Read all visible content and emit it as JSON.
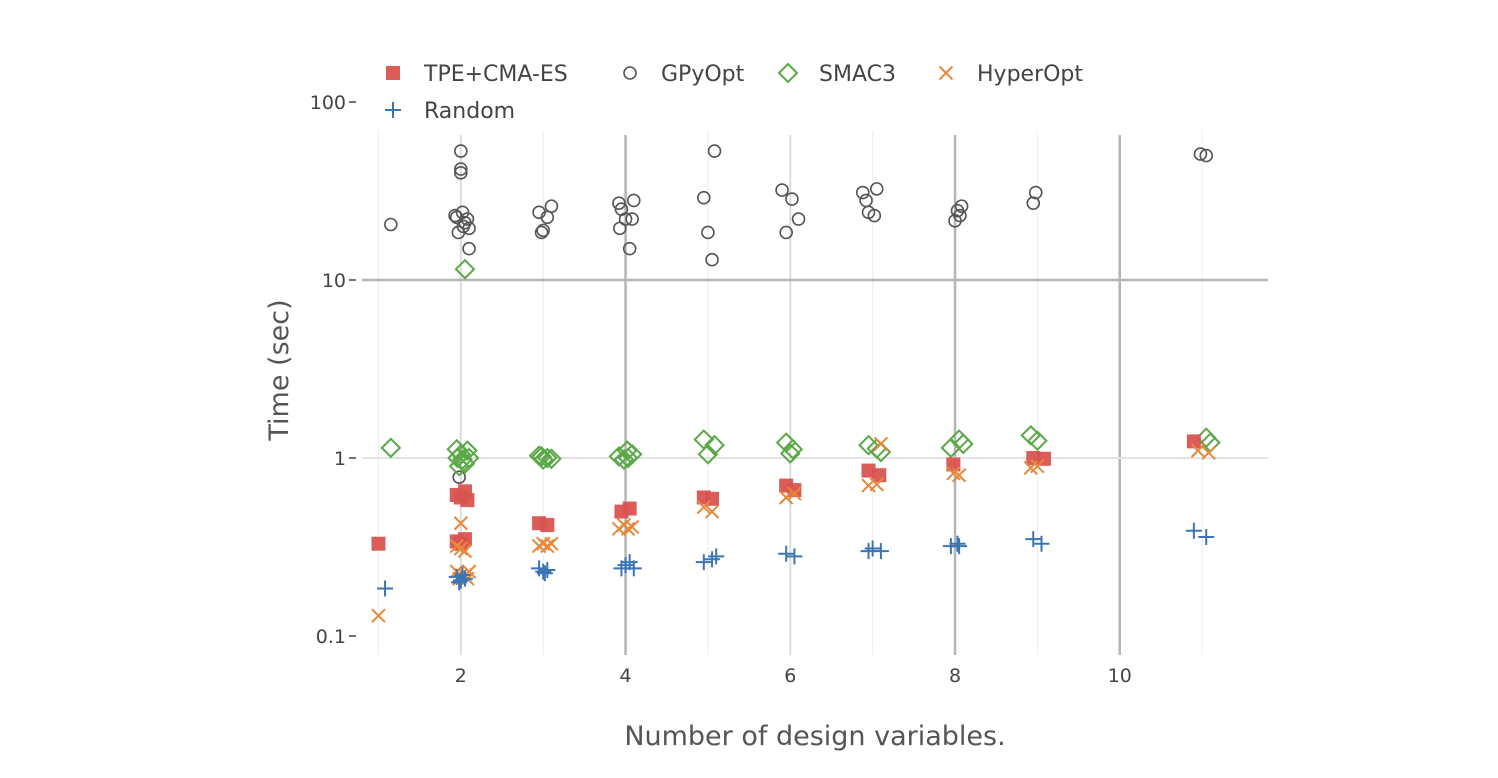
{
  "chart_data": {
    "type": "scatter",
    "title": "",
    "xlabel": "Number of design variables.",
    "ylabel": "Time (sec)",
    "x_range": [
      0.8,
      11.8
    ],
    "y_range": [
      0.09,
      100
    ],
    "y_scale": "log",
    "x_ticks": [
      2,
      4,
      6,
      8,
      10
    ],
    "y_ticks": [
      {
        "value": 0.1,
        "label": "0.1"
      },
      {
        "value": 1,
        "label": "1"
      },
      {
        "value": 10,
        "label": "10"
      },
      {
        "value": 100,
        "label": "100"
      }
    ],
    "grid": true,
    "legend": "top-left",
    "series": [
      {
        "name": "TPE+CMA-ES",
        "marker": "square",
        "color": "#d9534f",
        "points": [
          [
            1,
            0.33
          ],
          [
            1.95,
            0.62
          ],
          [
            2.0,
            0.6
          ],
          [
            2.05,
            0.65
          ],
          [
            2.08,
            0.58
          ],
          [
            1.95,
            0.34
          ],
          [
            2.0,
            0.33
          ],
          [
            2.05,
            0.35
          ],
          [
            2.95,
            0.43
          ],
          [
            3.05,
            0.42
          ],
          [
            3.95,
            0.5
          ],
          [
            4.05,
            0.52
          ],
          [
            4.95,
            0.6
          ],
          [
            5.05,
            0.59
          ],
          [
            5.95,
            0.7
          ],
          [
            6.05,
            0.66
          ],
          [
            6.95,
            0.85
          ],
          [
            7.08,
            0.8
          ],
          [
            7.98,
            0.92
          ],
          [
            8.95,
            1.0
          ],
          [
            9.08,
            0.99
          ],
          [
            10.9,
            1.24
          ]
        ]
      },
      {
        "name": "GPyOpt",
        "marker": "circle-open",
        "color": "#555555",
        "points": [
          [
            1.15,
            20.5
          ],
          [
            1.95,
            22.5
          ],
          [
            1.97,
            18.5
          ],
          [
            2.0,
            53
          ],
          [
            2.0,
            42
          ],
          [
            2.0,
            40
          ],
          [
            2.02,
            24
          ],
          [
            2.05,
            21
          ],
          [
            2.08,
            22
          ],
          [
            2.1,
            19.5
          ],
          [
            2.1,
            15
          ],
          [
            1.93,
            23
          ],
          [
            2.03,
            20
          ],
          [
            1.98,
            0.78
          ],
          [
            2.95,
            24
          ],
          [
            2.98,
            18.5
          ],
          [
            3.0,
            19
          ],
          [
            3.05,
            22.5
          ],
          [
            3.1,
            26
          ],
          [
            3.92,
            27
          ],
          [
            3.95,
            25
          ],
          [
            4.0,
            22
          ],
          [
            4.05,
            15
          ],
          [
            4.1,
            28
          ],
          [
            3.93,
            19.5
          ],
          [
            4.08,
            22
          ],
          [
            4.95,
            29
          ],
          [
            5.0,
            18.5
          ],
          [
            5.05,
            13
          ],
          [
            5.08,
            53
          ],
          [
            5.9,
            32
          ],
          [
            5.95,
            18.5
          ],
          [
            6.02,
            28.5
          ],
          [
            6.1,
            22
          ],
          [
            6.88,
            31
          ],
          [
            6.92,
            28
          ],
          [
            6.95,
            24
          ],
          [
            7.02,
            23
          ],
          [
            7.05,
            32.5
          ],
          [
            8.0,
            21.5
          ],
          [
            8.03,
            24.5
          ],
          [
            8.06,
            23
          ],
          [
            8.08,
            26
          ],
          [
            8.95,
            27
          ],
          [
            8.98,
            31
          ],
          [
            10.98,
            51
          ],
          [
            11.05,
            50
          ]
        ]
      },
      {
        "name": "SMAC3",
        "marker": "diamond-open",
        "color": "#5aa846",
        "points": [
          [
            1.15,
            1.14
          ],
          [
            1.95,
            1.12
          ],
          [
            2.0,
            1.05
          ],
          [
            2.02,
            0.98
          ],
          [
            2.05,
            0.93
          ],
          [
            1.98,
            0.9
          ],
          [
            2.08,
            1.1
          ],
          [
            2.1,
            1.0
          ],
          [
            1.96,
            1.0
          ],
          [
            2.05,
            11.5
          ],
          [
            2.95,
            1.03
          ],
          [
            3.0,
            0.98
          ],
          [
            3.05,
            1.0
          ],
          [
            3.1,
            0.99
          ],
          [
            2.98,
            1.02
          ],
          [
            3.92,
            1.02
          ],
          [
            3.98,
            0.98
          ],
          [
            4.02,
            1.1
          ],
          [
            4.08,
            1.05
          ],
          [
            4.03,
            1.0
          ],
          [
            4.95,
            1.27
          ],
          [
            5.0,
            1.05
          ],
          [
            5.08,
            1.18
          ],
          [
            5.95,
            1.22
          ],
          [
            6.0,
            1.06
          ],
          [
            6.03,
            1.12
          ],
          [
            6.95,
            1.18
          ],
          [
            7.05,
            1.13
          ],
          [
            7.1,
            1.08
          ],
          [
            7.95,
            1.14
          ],
          [
            8.05,
            1.27
          ],
          [
            8.1,
            1.2
          ],
          [
            8.92,
            1.34
          ],
          [
            9.0,
            1.25
          ],
          [
            11.05,
            1.3
          ],
          [
            11.1,
            1.22
          ]
        ]
      },
      {
        "name": "HyperOpt",
        "marker": "x",
        "color": "#e8883a",
        "points": [
          [
            1.0,
            0.13
          ],
          [
            1.95,
            0.23
          ],
          [
            2.0,
            0.22
          ],
          [
            2.05,
            0.22
          ],
          [
            2.1,
            0.23
          ],
          [
            1.95,
            0.32
          ],
          [
            2.0,
            0.31
          ],
          [
            2.05,
            0.3
          ],
          [
            2.0,
            0.43
          ],
          [
            2.08,
            0.21
          ],
          [
            1.98,
            0.21
          ],
          [
            2.95,
            0.32
          ],
          [
            3.0,
            0.33
          ],
          [
            3.05,
            0.32
          ],
          [
            3.1,
            0.33
          ],
          [
            3.92,
            0.4
          ],
          [
            3.98,
            0.42
          ],
          [
            4.03,
            0.4
          ],
          [
            4.08,
            0.41
          ],
          [
            4.95,
            0.53
          ],
          [
            5.05,
            0.5
          ],
          [
            5.95,
            0.6
          ],
          [
            6.05,
            0.63
          ],
          [
            6.95,
            0.7
          ],
          [
            7.05,
            0.71
          ],
          [
            7.1,
            1.2
          ],
          [
            7.98,
            0.82
          ],
          [
            8.05,
            0.8
          ],
          [
            8.92,
            0.88
          ],
          [
            9.0,
            0.9
          ],
          [
            10.95,
            1.1
          ],
          [
            11.08,
            1.07
          ]
        ]
      },
      {
        "name": "Random",
        "marker": "cross",
        "color": "#3b75b5",
        "points": [
          [
            1.08,
            0.185
          ],
          [
            1.95,
            0.215
          ],
          [
            2.0,
            0.205
          ],
          [
            2.05,
            0.21
          ],
          [
            2.02,
            0.22
          ],
          [
            1.98,
            0.2
          ],
          [
            2.95,
            0.24
          ],
          [
            3.0,
            0.23
          ],
          [
            3.05,
            0.235
          ],
          [
            3.02,
            0.225
          ],
          [
            3.95,
            0.24
          ],
          [
            4.0,
            0.25
          ],
          [
            4.05,
            0.26
          ],
          [
            4.1,
            0.24
          ],
          [
            4.95,
            0.26
          ],
          [
            5.05,
            0.27
          ],
          [
            5.1,
            0.28
          ],
          [
            5.95,
            0.29
          ],
          [
            6.05,
            0.28
          ],
          [
            6.95,
            0.3
          ],
          [
            7.0,
            0.31
          ],
          [
            7.1,
            0.3
          ],
          [
            7.95,
            0.32
          ],
          [
            8.03,
            0.33
          ],
          [
            8.05,
            0.32
          ],
          [
            8.95,
            0.35
          ],
          [
            9.05,
            0.33
          ],
          [
            10.9,
            0.39
          ],
          [
            11.05,
            0.36
          ]
        ]
      }
    ]
  }
}
